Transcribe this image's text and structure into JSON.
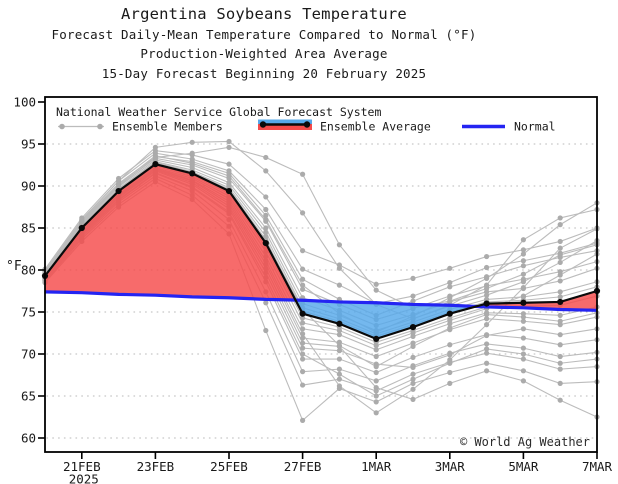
{
  "title": {
    "line1": "Argentina Soybeans Temperature",
    "line2": "Forecast Daily-Mean Temperature Compared to Normal (°F)",
    "line3": "Production-Weighted Area Average",
    "line4": "15-Day Forecast Beginning 20 February 2025"
  },
  "legend": {
    "header": "National Weather Service Global Forecast System",
    "members_label": "Ensemble Members",
    "average_label": "Ensemble Average",
    "normal_label": "Normal"
  },
  "copyright": "© World Ag Weather",
  "axes": {
    "y_label": "°F",
    "y_ticks": [
      100,
      95,
      90,
      85,
      80,
      75,
      70,
      65,
      60
    ],
    "gridline_values": [
      95,
      90,
      85,
      80,
      75,
      70,
      65,
      60
    ],
    "x_ticks": [
      {
        "label": "21FEB",
        "sub": "2025",
        "day": 1
      },
      {
        "label": "23FEB",
        "sub": "",
        "day": 3
      },
      {
        "label": "25FEB",
        "sub": "",
        "day": 5
      },
      {
        "label": "27FEB",
        "sub": "",
        "day": 7
      },
      {
        "label": "1MAR",
        "sub": "",
        "day": 9
      },
      {
        "label": "3MAR",
        "sub": "",
        "day": 11
      },
      {
        "label": "5MAR",
        "sub": "",
        "day": 13
      },
      {
        "label": "7MAR",
        "sub": "",
        "day": 15
      }
    ]
  },
  "colors": {
    "above_normal_fill": "#f54a4a",
    "below_normal_fill": "#55a8ea",
    "normal_blue": "#2424f2",
    "member_gray": "#bcbcbc",
    "member_dot_gray": "#ababab",
    "average_black": "#0a0a0a",
    "grid_gray": "#b8b8b8",
    "axis_black": "#000000"
  },
  "chart_data": {
    "type": "line",
    "title": "Argentina Soybeans Temperature",
    "ylabel": "°F",
    "ylim": [
      58.5,
      100.6
    ],
    "grid": "horizontal-dotted",
    "legend_position": "top-inside",
    "x_dates": [
      "20FEB",
      "21FEB",
      "22FEB",
      "23FEB",
      "24FEB",
      "25FEB",
      "26FEB",
      "27FEB",
      "28FEB",
      "1MAR",
      "2MAR",
      "3MAR",
      "4MAR",
      "5MAR",
      "6MAR",
      "7MAR"
    ],
    "ensemble_average": [
      79.3,
      85.0,
      89.4,
      92.6,
      91.5,
      89.4,
      83.2,
      74.8,
      73.6,
      71.8,
      73.2,
      74.8,
      76.0,
      76.1,
      76.2,
      77.5
    ],
    "normal": [
      77.4,
      77.3,
      77.1,
      77.0,
      76.8,
      76.7,
      76.5,
      76.4,
      76.2,
      76.1,
      75.9,
      75.8,
      75.6,
      75.5,
      75.3,
      75.2
    ],
    "ensemble_members": [
      [
        80.1,
        86.2,
        90.9,
        94.2,
        93.7,
        92.6,
        88.7,
        82.3,
        80.6,
        78.3,
        79.0,
        80.2,
        81.6,
        82.4,
        83.4,
        85.0
      ],
      [
        79.9,
        86.0,
        90.6,
        93.9,
        93.2,
        91.8,
        87.2,
        80.1,
        78.2,
        76.0,
        76.9,
        78.5,
        80.3,
        81.1,
        82.0,
        83.2
      ],
      [
        79.8,
        85.8,
        90.3,
        93.5,
        92.9,
        91.5,
        86.5,
        78.9,
        76.5,
        74.6,
        76.3,
        78.0,
        79.2,
        80.5,
        81.5,
        82.3
      ],
      [
        79.7,
        85.6,
        90.1,
        93.3,
        92.5,
        90.9,
        85.8,
        77.7,
        75.9,
        74.1,
        75.4,
        76.9,
        78.1,
        78.9,
        79.8,
        81.0
      ],
      [
        79.6,
        85.5,
        89.9,
        93.1,
        92.2,
        90.4,
        85.0,
        76.7,
        75.2,
        73.4,
        74.7,
        76.2,
        77.4,
        77.8,
        78.7,
        80.2
      ],
      [
        79.5,
        85.3,
        89.7,
        92.9,
        91.9,
        90.1,
        84.5,
        76.0,
        74.6,
        72.8,
        74.2,
        75.7,
        77.0,
        78.6,
        80.9,
        83.5
      ],
      [
        79.4,
        85.2,
        89.6,
        92.8,
        91.7,
        89.8,
        84.0,
        75.5,
        74.2,
        72.4,
        73.8,
        75.3,
        76.5,
        76.8,
        77.4,
        78.6
      ],
      [
        79.4,
        85.1,
        89.5,
        92.7,
        91.6,
        89.6,
        83.6,
        75.1,
        73.9,
        72.1,
        73.5,
        75.0,
        76.2,
        76.4,
        76.8,
        78.0
      ],
      [
        79.3,
        85.4,
        90.0,
        93.4,
        93.9,
        94.6,
        93.4,
        91.4,
        83.0,
        77.6,
        75.5,
        76.3,
        77.8,
        79.5,
        81.8,
        83.0
      ],
      [
        79.6,
        85.9,
        90.6,
        94.6,
        95.2,
        95.3,
        91.8,
        86.8,
        80.2,
        75.9,
        74.2,
        75.8,
        78.2,
        83.6,
        86.2,
        87.2
      ],
      [
        79.2,
        84.9,
        89.3,
        92.5,
        91.3,
        89.1,
        82.7,
        74.3,
        73.2,
        71.4,
        72.8,
        74.3,
        75.6,
        75.7,
        75.8,
        76.9
      ],
      [
        79.2,
        84.8,
        89.2,
        92.4,
        91.1,
        88.8,
        82.2,
        73.7,
        72.8,
        71.0,
        72.5,
        74.0,
        75.4,
        76.9,
        79.4,
        81.9
      ],
      [
        79.1,
        84.7,
        89.0,
        92.2,
        90.9,
        88.5,
        81.6,
        73.0,
        72.3,
        70.5,
        72.1,
        73.6,
        74.9,
        74.8,
        74.6,
        75.6
      ],
      [
        79.0,
        84.5,
        88.8,
        92.0,
        90.6,
        87.9,
        80.7,
        71.9,
        71.4,
        69.7,
        71.3,
        72.9,
        74.2,
        73.9,
        73.5,
        74.4
      ],
      [
        78.9,
        84.3,
        88.6,
        91.8,
        90.2,
        87.3,
        79.7,
        70.7,
        70.4,
        68.8,
        68.4,
        69.9,
        72.2,
        73.0,
        72.3,
        73.0
      ],
      [
        78.8,
        84.1,
        88.3,
        91.5,
        89.8,
        86.7,
        78.6,
        69.4,
        69.4,
        67.8,
        69.6,
        71.1,
        72.3,
        71.9,
        71.1,
        71.7
      ],
      [
        78.7,
        83.9,
        88.1,
        91.2,
        89.4,
        86.0,
        77.4,
        67.9,
        68.2,
        66.8,
        68.6,
        70.1,
        71.2,
        70.7,
        69.7,
        70.2
      ],
      [
        78.6,
        83.7,
        87.8,
        90.9,
        88.9,
        85.2,
        76.1,
        66.3,
        67.0,
        65.6,
        67.6,
        69.0,
        70.1,
        69.4,
        68.2,
        68.5
      ],
      [
        78.5,
        83.4,
        87.5,
        90.5,
        88.4,
        84.3,
        72.8,
        62.1,
        65.9,
        64.3,
        66.5,
        67.8,
        68.9,
        68.0,
        66.5,
        66.7
      ],
      [
        78.9,
        84.4,
        88.7,
        91.9,
        90.4,
        87.6,
        80.2,
        71.3,
        70.9,
        66.0,
        64.6,
        66.5,
        68.0,
        66.8,
        64.5,
        62.5
      ],
      [
        79.0,
        84.6,
        88.9,
        92.1,
        90.7,
        88.2,
        81.1,
        72.4,
        66.2,
        63.0,
        65.8,
        69.3,
        73.5,
        77.9,
        82.6,
        84.9
      ],
      [
        78.8,
        84.2,
        88.4,
        91.6,
        89.9,
        86.9,
        79.1,
        70.0,
        67.6,
        65.0,
        67.0,
        68.9,
        70.6,
        70.0,
        68.9,
        69.4
      ],
      [
        79.3,
        85.1,
        89.5,
        92.7,
        91.6,
        89.5,
        83.4,
        75.3,
        71.0,
        68.5,
        70.9,
        73.1,
        74.7,
        74.4,
        73.9,
        74.9
      ],
      [
        79.5,
        85.7,
        90.2,
        93.6,
        92.7,
        91.2,
        86.0,
        78.2,
        74.8,
        72.6,
        74.5,
        76.7,
        79.0,
        81.9,
        85.4,
        88.0
      ]
    ]
  }
}
